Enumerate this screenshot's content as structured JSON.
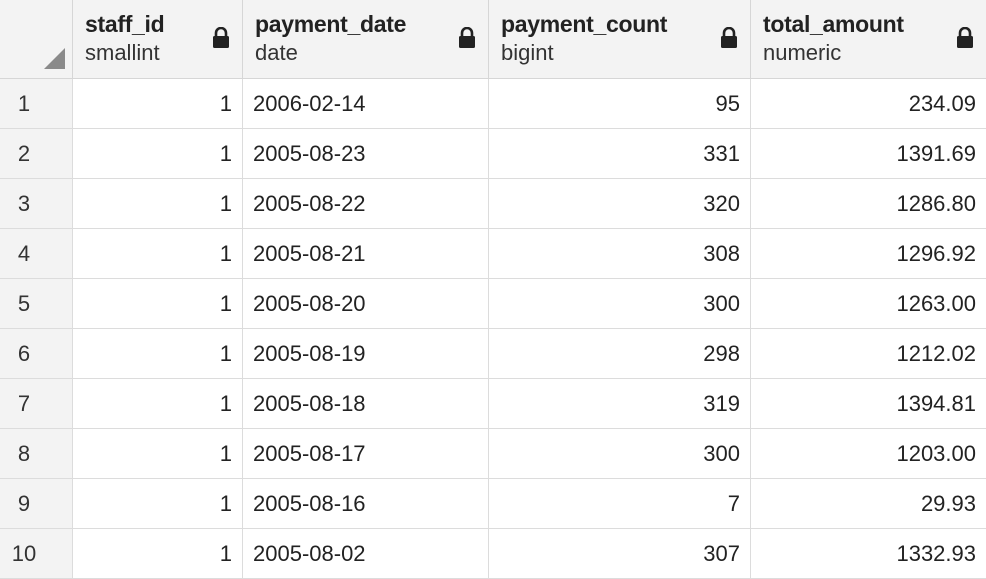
{
  "columns": [
    {
      "name": "staff_id",
      "type": "smallint"
    },
    {
      "name": "payment_date",
      "type": "date"
    },
    {
      "name": "payment_count",
      "type": "bigint"
    },
    {
      "name": "total_amount",
      "type": "numeric"
    }
  ],
  "rows": [
    {
      "n": "1",
      "staff_id": "1",
      "payment_date": "2006-02-14",
      "payment_count": "95",
      "total_amount": "234.09"
    },
    {
      "n": "2",
      "staff_id": "1",
      "payment_date": "2005-08-23",
      "payment_count": "331",
      "total_amount": "1391.69"
    },
    {
      "n": "3",
      "staff_id": "1",
      "payment_date": "2005-08-22",
      "payment_count": "320",
      "total_amount": "1286.80"
    },
    {
      "n": "4",
      "staff_id": "1",
      "payment_date": "2005-08-21",
      "payment_count": "308",
      "total_amount": "1296.92"
    },
    {
      "n": "5",
      "staff_id": "1",
      "payment_date": "2005-08-20",
      "payment_count": "300",
      "total_amount": "1263.00"
    },
    {
      "n": "6",
      "staff_id": "1",
      "payment_date": "2005-08-19",
      "payment_count": "298",
      "total_amount": "1212.02"
    },
    {
      "n": "7",
      "staff_id": "1",
      "payment_date": "2005-08-18",
      "payment_count": "319",
      "total_amount": "1394.81"
    },
    {
      "n": "8",
      "staff_id": "1",
      "payment_date": "2005-08-17",
      "payment_count": "300",
      "total_amount": "1203.00"
    },
    {
      "n": "9",
      "staff_id": "1",
      "payment_date": "2005-08-16",
      "payment_count": "7",
      "total_amount": "29.93"
    },
    {
      "n": "10",
      "staff_id": "1",
      "payment_date": "2005-08-02",
      "payment_count": "307",
      "total_amount": "1332.93"
    }
  ]
}
